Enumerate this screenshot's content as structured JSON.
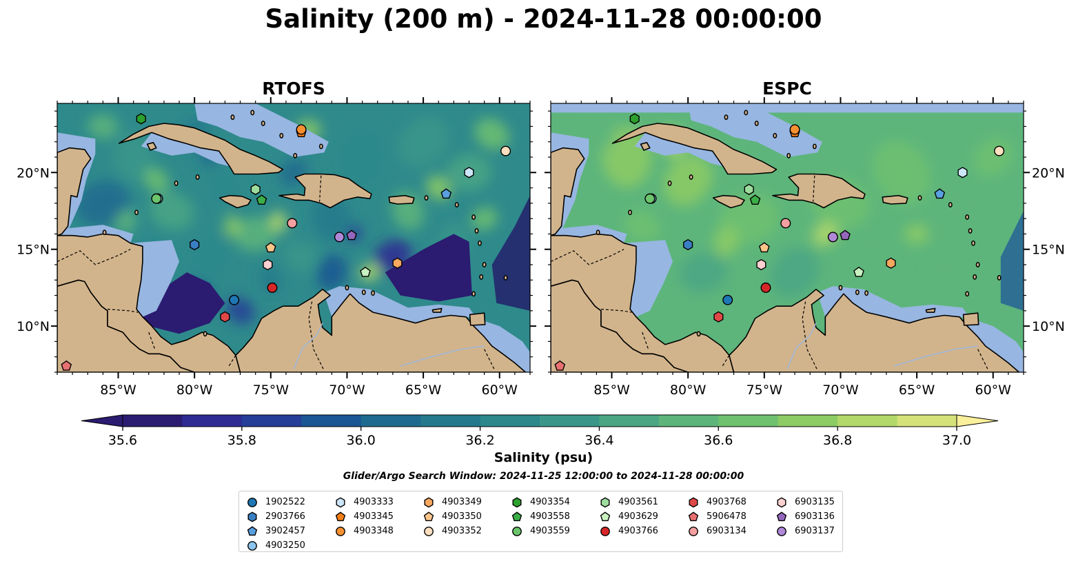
{
  "title": "Salinity (200 m) - 2024-11-28 00:00:00",
  "panels": [
    {
      "id": "rtofs",
      "title": "RTOFS"
    },
    {
      "id": "espc",
      "title": "ESPC"
    }
  ],
  "map": {
    "lon_range": [
      -89,
      -58
    ],
    "lat_range": [
      7,
      24.5
    ],
    "lon_ticks": [
      -85,
      -80,
      -75,
      -70,
      -65,
      -60
    ],
    "lon_tick_labels": [
      "85°W",
      "80°W",
      "75°W",
      "70°W",
      "65°W",
      "60°W"
    ],
    "lat_ticks": [
      10,
      15,
      20
    ],
    "lat_tick_labels": [
      "10°N",
      "15°N",
      "20°N"
    ],
    "land_color": "#d2b48c",
    "shelf_color": "#97b6e1",
    "deep_color": "#2a1d6b"
  },
  "colorbar": {
    "label": "Salinity (psu)",
    "min": 35.6,
    "max": 37.0,
    "step": 0.1,
    "extend": "both",
    "tick_values": [
      35.6,
      35.8,
      36.0,
      36.2,
      36.4,
      36.6,
      36.8,
      37.0
    ],
    "tick_labels": [
      "35.6",
      "35.8",
      "36.0",
      "36.2",
      "36.4",
      "36.6",
      "36.8",
      "37.0"
    ],
    "colors": [
      "#2b1b71",
      "#2e2b93",
      "#253e98",
      "#1a5693",
      "#1e6a8f",
      "#24798c",
      "#2c888b",
      "#3a9689",
      "#4ba684",
      "#5db57b",
      "#6fc170",
      "#8dcb65",
      "#b3d86a",
      "#d5e27a",
      "#faef9a"
    ]
  },
  "search_window": "Glider/Argo Search Window: 2024-11-25 12:00:00 to 2024-11-28 00:00:00",
  "floats": [
    {
      "id": "1902522",
      "marker": "circle",
      "color": "#1f77b4",
      "lon": -77.4,
      "lat": 11.7
    },
    {
      "id": "2903766",
      "marker": "hexagon",
      "color": "#3a7fc4",
      "lon": -80.0,
      "lat": 15.3
    },
    {
      "id": "3902457",
      "marker": "pentagon",
      "color": "#5aa0e0",
      "lon": -63.5,
      "lat": 18.6
    },
    {
      "id": "4903250",
      "marker": "circle",
      "color": "#8cc4ee",
      "lon": -82.4,
      "lat": 18.3
    },
    {
      "id": "4903333",
      "marker": "hexagon",
      "color": "#cde6f8",
      "lon": -62.0,
      "lat": 20.0
    },
    {
      "id": "4903345",
      "marker": "pentagon",
      "color": "#f57f17",
      "lon": -73.0,
      "lat": 22.6
    },
    {
      "id": "4903348",
      "marker": "circle",
      "color": "#f59132",
      "lon": -73.0,
      "lat": 22.8
    },
    {
      "id": "4903349",
      "marker": "hexagon",
      "color": "#f7a85f",
      "lon": -66.7,
      "lat": 14.1
    },
    {
      "id": "4903350",
      "marker": "pentagon",
      "color": "#fbc58a",
      "lon": -75.0,
      "lat": 15.1
    },
    {
      "id": "4903352",
      "marker": "circle",
      "color": "#fde0bf",
      "lon": -59.6,
      "lat": 21.4
    },
    {
      "id": "4903354",
      "marker": "hexagon",
      "color": "#2ca02c",
      "lon": -83.5,
      "lat": 23.5
    },
    {
      "id": "4903558",
      "marker": "pentagon",
      "color": "#3cae48",
      "lon": -75.6,
      "lat": 18.2
    },
    {
      "id": "4903559",
      "marker": "circle",
      "color": "#6cc56c",
      "lon": -82.5,
      "lat": 18.3
    },
    {
      "id": "4903561",
      "marker": "hexagon",
      "color": "#9ddc9d",
      "lon": -76.0,
      "lat": 18.9
    },
    {
      "id": "4903629",
      "marker": "pentagon",
      "color": "#c8f0c0",
      "lon": -68.8,
      "lat": 13.5
    },
    {
      "id": "4903766",
      "marker": "circle",
      "color": "#d62728",
      "lon": -74.9,
      "lat": 12.5
    },
    {
      "id": "4903768",
      "marker": "hexagon",
      "color": "#e04848",
      "lon": -78.0,
      "lat": 10.6
    },
    {
      "id": "5906478",
      "marker": "pentagon",
      "color": "#e87070",
      "lon": -88.4,
      "lat": 7.4
    },
    {
      "id": "6903134",
      "marker": "circle",
      "color": "#f4a0a0",
      "lon": -73.6,
      "lat": 16.7
    },
    {
      "id": "6903135",
      "marker": "hexagon",
      "color": "#fbd0d0",
      "lon": -75.2,
      "lat": 14.0
    },
    {
      "id": "6903136",
      "marker": "pentagon",
      "color": "#9467bd",
      "lon": -69.7,
      "lat": 15.9
    },
    {
      "id": "6903137",
      "marker": "circle",
      "color": "#b088d8",
      "lon": -70.5,
      "lat": 15.8
    }
  ]
}
